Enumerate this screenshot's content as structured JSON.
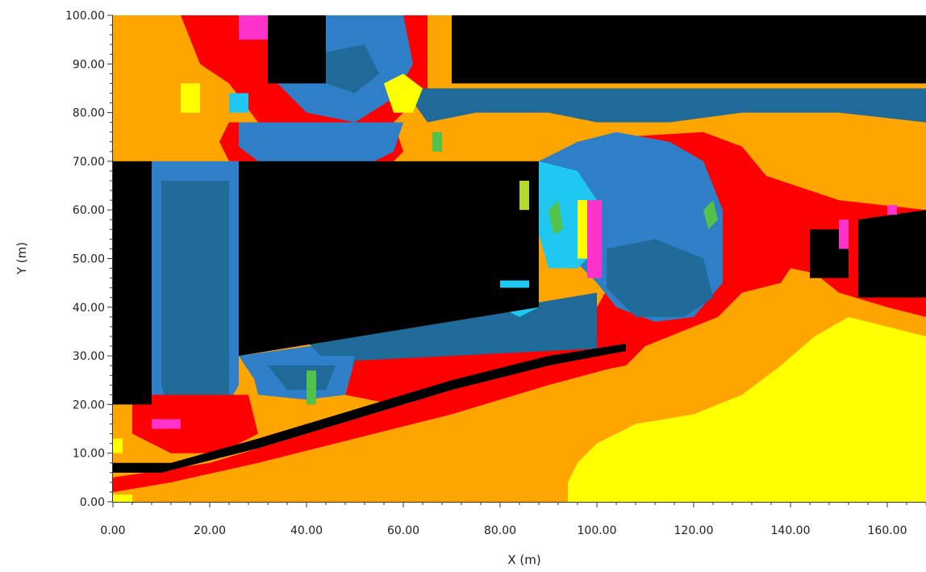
{
  "chart_data": {
    "type": "heatmap",
    "title": "",
    "xlabel": "X (m)",
    "ylabel": "Y (m)",
    "xlim": [
      0,
      168
    ],
    "ylim": [
      0,
      100
    ],
    "x_ticks": [
      "0.00",
      "20.00",
      "40.00",
      "60.00",
      "80.00",
      "100.00",
      "120.00",
      "140.00",
      "160.00"
    ],
    "y_ticks": [
      "0.00",
      "10.00",
      "20.00",
      "30.00",
      "40.00",
      "50.00",
      "60.00",
      "70.00",
      "80.00",
      "90.00",
      "100.00"
    ],
    "grid": false,
    "legend": "none",
    "colors": {
      "black": "#000000",
      "orange": "#ffa500",
      "red": "#ff0000",
      "yellow": "#ffff00",
      "magenta": "#ff33cc",
      "cyan": "#1ec8f0",
      "mid_blue": "#2f7fc8",
      "steel_blue": "#1f6a98",
      "green": "#52c24a",
      "lime": "#b5d730"
    },
    "regions": [
      {
        "color": "orange",
        "polygon": [
          [
            0,
            0
          ],
          [
            168,
            0
          ],
          [
            168,
            100
          ],
          [
            0,
            100
          ]
        ]
      },
      {
        "color": "red",
        "polygon": [
          [
            14,
            100
          ],
          [
            65,
            100
          ],
          [
            65,
            85
          ],
          [
            58,
            78
          ],
          [
            45,
            75
          ],
          [
            30,
            78
          ],
          [
            24,
            86
          ],
          [
            18,
            90
          ]
        ]
      },
      {
        "color": "mid_blue",
        "polygon": [
          [
            32,
            100
          ],
          [
            60,
            100
          ],
          [
            62,
            90
          ],
          [
            58,
            83
          ],
          [
            50,
            78
          ],
          [
            40,
            80
          ],
          [
            34,
            86
          ]
        ]
      },
      {
        "color": "steel_blue",
        "polygon": [
          [
            42,
            92
          ],
          [
            52,
            94
          ],
          [
            55,
            88
          ],
          [
            50,
            84
          ],
          [
            44,
            86
          ]
        ]
      },
      {
        "color": "red",
        "polygon": [
          [
            24,
            78
          ],
          [
            58,
            78
          ],
          [
            60,
            72
          ],
          [
            58,
            70
          ],
          [
            24,
            70
          ],
          [
            22,
            74
          ]
        ]
      },
      {
        "color": "steel_blue",
        "polygon": [
          [
            60,
            85
          ],
          [
            168,
            85
          ],
          [
            168,
            78
          ],
          [
            150,
            80
          ],
          [
            130,
            80
          ],
          [
            115,
            78
          ],
          [
            100,
            78
          ],
          [
            90,
            80
          ],
          [
            75,
            80
          ],
          [
            65,
            78
          ]
        ]
      },
      {
        "color": "mid_blue",
        "polygon": [
          [
            26,
            78
          ],
          [
            60,
            78
          ],
          [
            58,
            72
          ],
          [
            54,
            70
          ],
          [
            30,
            70
          ],
          [
            26,
            73
          ]
        ]
      },
      {
        "color": "red",
        "polygon": [
          [
            105,
            75
          ],
          [
            122,
            76
          ],
          [
            130,
            73
          ],
          [
            135,
            67
          ],
          [
            150,
            62
          ],
          [
            168,
            60
          ],
          [
            168,
            38
          ],
          [
            160,
            40
          ],
          [
            150,
            43
          ],
          [
            145,
            47
          ],
          [
            140,
            48
          ],
          [
            138,
            45
          ],
          [
            130,
            43
          ],
          [
            125,
            38
          ],
          [
            120,
            36
          ],
          [
            105,
            30
          ],
          [
            100,
            30
          ],
          [
            100,
            40
          ],
          [
            104,
            47
          ]
        ]
      },
      {
        "color": "mid_blue",
        "polygon": [
          [
            88,
            70
          ],
          [
            96,
            74
          ],
          [
            104,
            76
          ],
          [
            115,
            74
          ],
          [
            122,
            70
          ],
          [
            126,
            60
          ],
          [
            126,
            45
          ],
          [
            120,
            38
          ],
          [
            112,
            37
          ],
          [
            104,
            40
          ],
          [
            100,
            45
          ],
          [
            95,
            50
          ],
          [
            88,
            55
          ]
        ]
      },
      {
        "color": "steel_blue",
        "polygon": [
          [
            102,
            52
          ],
          [
            112,
            54
          ],
          [
            122,
            50
          ],
          [
            124,
            42
          ],
          [
            118,
            38
          ],
          [
            108,
            38
          ],
          [
            102,
            44
          ]
        ]
      },
      {
        "color": "cyan",
        "polygon": [
          [
            88,
            70
          ],
          [
            96,
            68
          ],
          [
            100,
            62
          ],
          [
            100,
            52
          ],
          [
            96,
            48
          ],
          [
            90,
            48
          ],
          [
            88,
            55
          ]
        ]
      },
      {
        "color": "magenta",
        "polygon": [
          [
            98,
            62
          ],
          [
            101,
            62
          ],
          [
            101,
            46
          ],
          [
            98,
            46
          ]
        ]
      },
      {
        "color": "yellow",
        "polygon": [
          [
            96,
            62
          ],
          [
            98,
            62
          ],
          [
            98,
            50
          ],
          [
            96,
            50
          ]
        ]
      },
      {
        "color": "mid_blue",
        "polygon": [
          [
            6,
            70
          ],
          [
            26,
            70
          ],
          [
            26,
            24
          ],
          [
            22,
            17
          ],
          [
            14,
            14
          ],
          [
            8,
            18
          ],
          [
            6,
            24
          ]
        ]
      },
      {
        "color": "steel_blue",
        "polygon": [
          [
            10,
            66
          ],
          [
            24,
            66
          ],
          [
            24,
            22
          ],
          [
            18,
            16
          ],
          [
            12,
            18
          ],
          [
            10,
            24
          ]
        ]
      },
      {
        "color": "red",
        "polygon": [
          [
            4,
            22
          ],
          [
            28,
            22
          ],
          [
            30,
            14
          ],
          [
            22,
            10
          ],
          [
            12,
            10
          ],
          [
            4,
            14
          ]
        ]
      },
      {
        "color": "mid_blue",
        "polygon": [
          [
            26,
            30
          ],
          [
            100,
            40
          ],
          [
            100,
            30
          ],
          [
            85,
            28
          ],
          [
            70,
            26
          ],
          [
            55,
            25
          ],
          [
            40,
            23
          ],
          [
            30,
            24
          ]
        ]
      },
      {
        "color": "steel_blue",
        "polygon": [
          [
            40,
            33
          ],
          [
            100,
            43
          ],
          [
            100,
            31
          ],
          [
            80,
            28
          ],
          [
            60,
            27
          ],
          [
            45,
            28
          ]
        ]
      },
      {
        "color": "cyan",
        "polygon": [
          [
            80,
            40
          ],
          [
            88,
            46
          ],
          [
            88,
            40
          ],
          [
            84,
            38
          ]
        ]
      },
      {
        "color": "red",
        "polygon": [
          [
            50,
            29
          ],
          [
            110,
            32
          ],
          [
            106,
            28
          ],
          [
            90,
            25
          ],
          [
            72,
            21
          ],
          [
            58,
            20
          ],
          [
            48,
            22
          ]
        ]
      },
      {
        "color": "mid_blue",
        "polygon": [
          [
            28,
            30
          ],
          [
            50,
            30
          ],
          [
            48,
            22
          ],
          [
            40,
            21
          ],
          [
            30,
            22
          ]
        ]
      },
      {
        "color": "steel_blue",
        "polygon": [
          [
            32,
            28
          ],
          [
            46,
            28
          ],
          [
            44,
            23
          ],
          [
            36,
            23
          ]
        ]
      },
      {
        "color": "yellow",
        "polygon": [
          [
            94,
            0
          ],
          [
            168,
            0
          ],
          [
            168,
            34
          ],
          [
            160,
            36
          ],
          [
            152,
            38
          ],
          [
            145,
            34
          ],
          [
            138,
            28
          ],
          [
            130,
            22
          ],
          [
            120,
            18
          ],
          [
            108,
            16
          ],
          [
            100,
            12
          ],
          [
            96,
            8
          ],
          [
            94,
            4
          ]
        ]
      },
      {
        "color": "red",
        "polygon": [
          [
            0,
            5
          ],
          [
            20,
            8
          ],
          [
            40,
            14
          ],
          [
            60,
            20
          ],
          [
            80,
            25
          ],
          [
            100,
            30
          ],
          [
            108,
            31
          ],
          [
            105,
            28
          ],
          [
            90,
            24
          ],
          [
            70,
            18
          ],
          [
            50,
            13
          ],
          [
            30,
            8
          ],
          [
            12,
            4
          ],
          [
            0,
            2
          ]
        ]
      },
      {
        "color": "black",
        "polygon": [
          [
            0,
            6
          ],
          [
            10,
            6
          ],
          [
            30,
            11
          ],
          [
            50,
            17
          ],
          [
            70,
            23
          ],
          [
            90,
            28
          ],
          [
            106,
            31
          ],
          [
            106,
            32.5
          ],
          [
            90,
            30
          ],
          [
            70,
            25
          ],
          [
            50,
            19
          ],
          [
            30,
            13
          ],
          [
            12,
            8
          ],
          [
            0,
            8
          ]
        ]
      },
      {
        "color": "black",
        "polygon": [
          [
            0,
            20
          ],
          [
            8,
            20
          ],
          [
            8,
            70
          ],
          [
            0,
            70
          ]
        ]
      },
      {
        "color": "black",
        "polygon": [
          [
            26,
            30
          ],
          [
            88,
            40
          ],
          [
            88,
            70
          ],
          [
            26,
            70
          ]
        ]
      },
      {
        "color": "black",
        "polygon": [
          [
            32,
            86
          ],
          [
            44,
            86
          ],
          [
            44,
            100
          ],
          [
            32,
            100
          ]
        ]
      },
      {
        "color": "black",
        "polygon": [
          [
            70,
            86
          ],
          [
            168,
            86
          ],
          [
            168,
            100
          ],
          [
            70,
            100
          ]
        ]
      },
      {
        "color": "black",
        "polygon": [
          [
            144,
            46
          ],
          [
            152,
            46
          ],
          [
            152,
            56
          ],
          [
            144,
            56
          ]
        ]
      },
      {
        "color": "black",
        "polygon": [
          [
            154,
            42
          ],
          [
            168,
            42
          ],
          [
            168,
            60
          ],
          [
            154,
            58
          ]
        ]
      },
      {
        "color": "cyan",
        "polygon": [
          [
            80,
            44
          ],
          [
            86,
            44
          ],
          [
            86,
            45.5
          ],
          [
            80,
            45.5
          ]
        ]
      },
      {
        "color": "yellow",
        "polygon": [
          [
            0,
            0
          ],
          [
            4,
            0
          ],
          [
            4,
            1.5
          ],
          [
            0,
            1.5
          ]
        ]
      },
      {
        "color": "yellow",
        "polygon": [
          [
            0,
            10
          ],
          [
            2,
            10
          ],
          [
            2,
            13
          ],
          [
            0,
            13
          ]
        ]
      },
      {
        "color": "yellow",
        "polygon": [
          [
            58,
            80
          ],
          [
            62,
            80
          ],
          [
            64,
            85
          ],
          [
            60,
            88
          ],
          [
            56,
            86
          ]
        ]
      },
      {
        "color": "yellow",
        "polygon": [
          [
            14,
            86
          ],
          [
            18,
            86
          ],
          [
            18,
            80
          ],
          [
            14,
            80
          ]
        ]
      },
      {
        "color": "magenta",
        "polygon": [
          [
            26,
            100
          ],
          [
            32,
            100
          ],
          [
            32,
            95
          ],
          [
            26,
            95
          ]
        ]
      },
      {
        "color": "magenta",
        "polygon": [
          [
            8,
            17
          ],
          [
            14,
            17
          ],
          [
            14,
            15
          ],
          [
            8,
            15
          ]
        ]
      },
      {
        "color": "magenta",
        "polygon": [
          [
            150,
            58
          ],
          [
            152,
            58
          ],
          [
            152,
            52
          ],
          [
            150,
            52
          ]
        ]
      },
      {
        "color": "magenta",
        "polygon": [
          [
            160,
            61
          ],
          [
            162,
            61
          ],
          [
            162,
            59
          ],
          [
            160,
            59
          ]
        ]
      },
      {
        "color": "cyan",
        "polygon": [
          [
            24,
            84
          ],
          [
            28,
            84
          ],
          [
            28,
            80
          ],
          [
            24,
            80
          ]
        ]
      },
      {
        "color": "green",
        "polygon": [
          [
            90,
            60
          ],
          [
            92,
            62
          ],
          [
            93,
            56
          ],
          [
            91,
            55
          ]
        ]
      },
      {
        "color": "green",
        "polygon": [
          [
            122,
            60
          ],
          [
            124,
            62
          ],
          [
            125,
            58
          ],
          [
            123,
            56
          ]
        ]
      },
      {
        "color": "green",
        "polygon": [
          [
            40,
            27
          ],
          [
            42,
            27
          ],
          [
            42,
            20
          ],
          [
            40,
            20
          ]
        ]
      },
      {
        "color": "lime",
        "polygon": [
          [
            84,
            66
          ],
          [
            86,
            66
          ],
          [
            86,
            60
          ],
          [
            84,
            60
          ]
        ]
      },
      {
        "color": "green",
        "polygon": [
          [
            66,
            76
          ],
          [
            68,
            76
          ],
          [
            68,
            72
          ],
          [
            66,
            72
          ]
        ]
      }
    ]
  }
}
